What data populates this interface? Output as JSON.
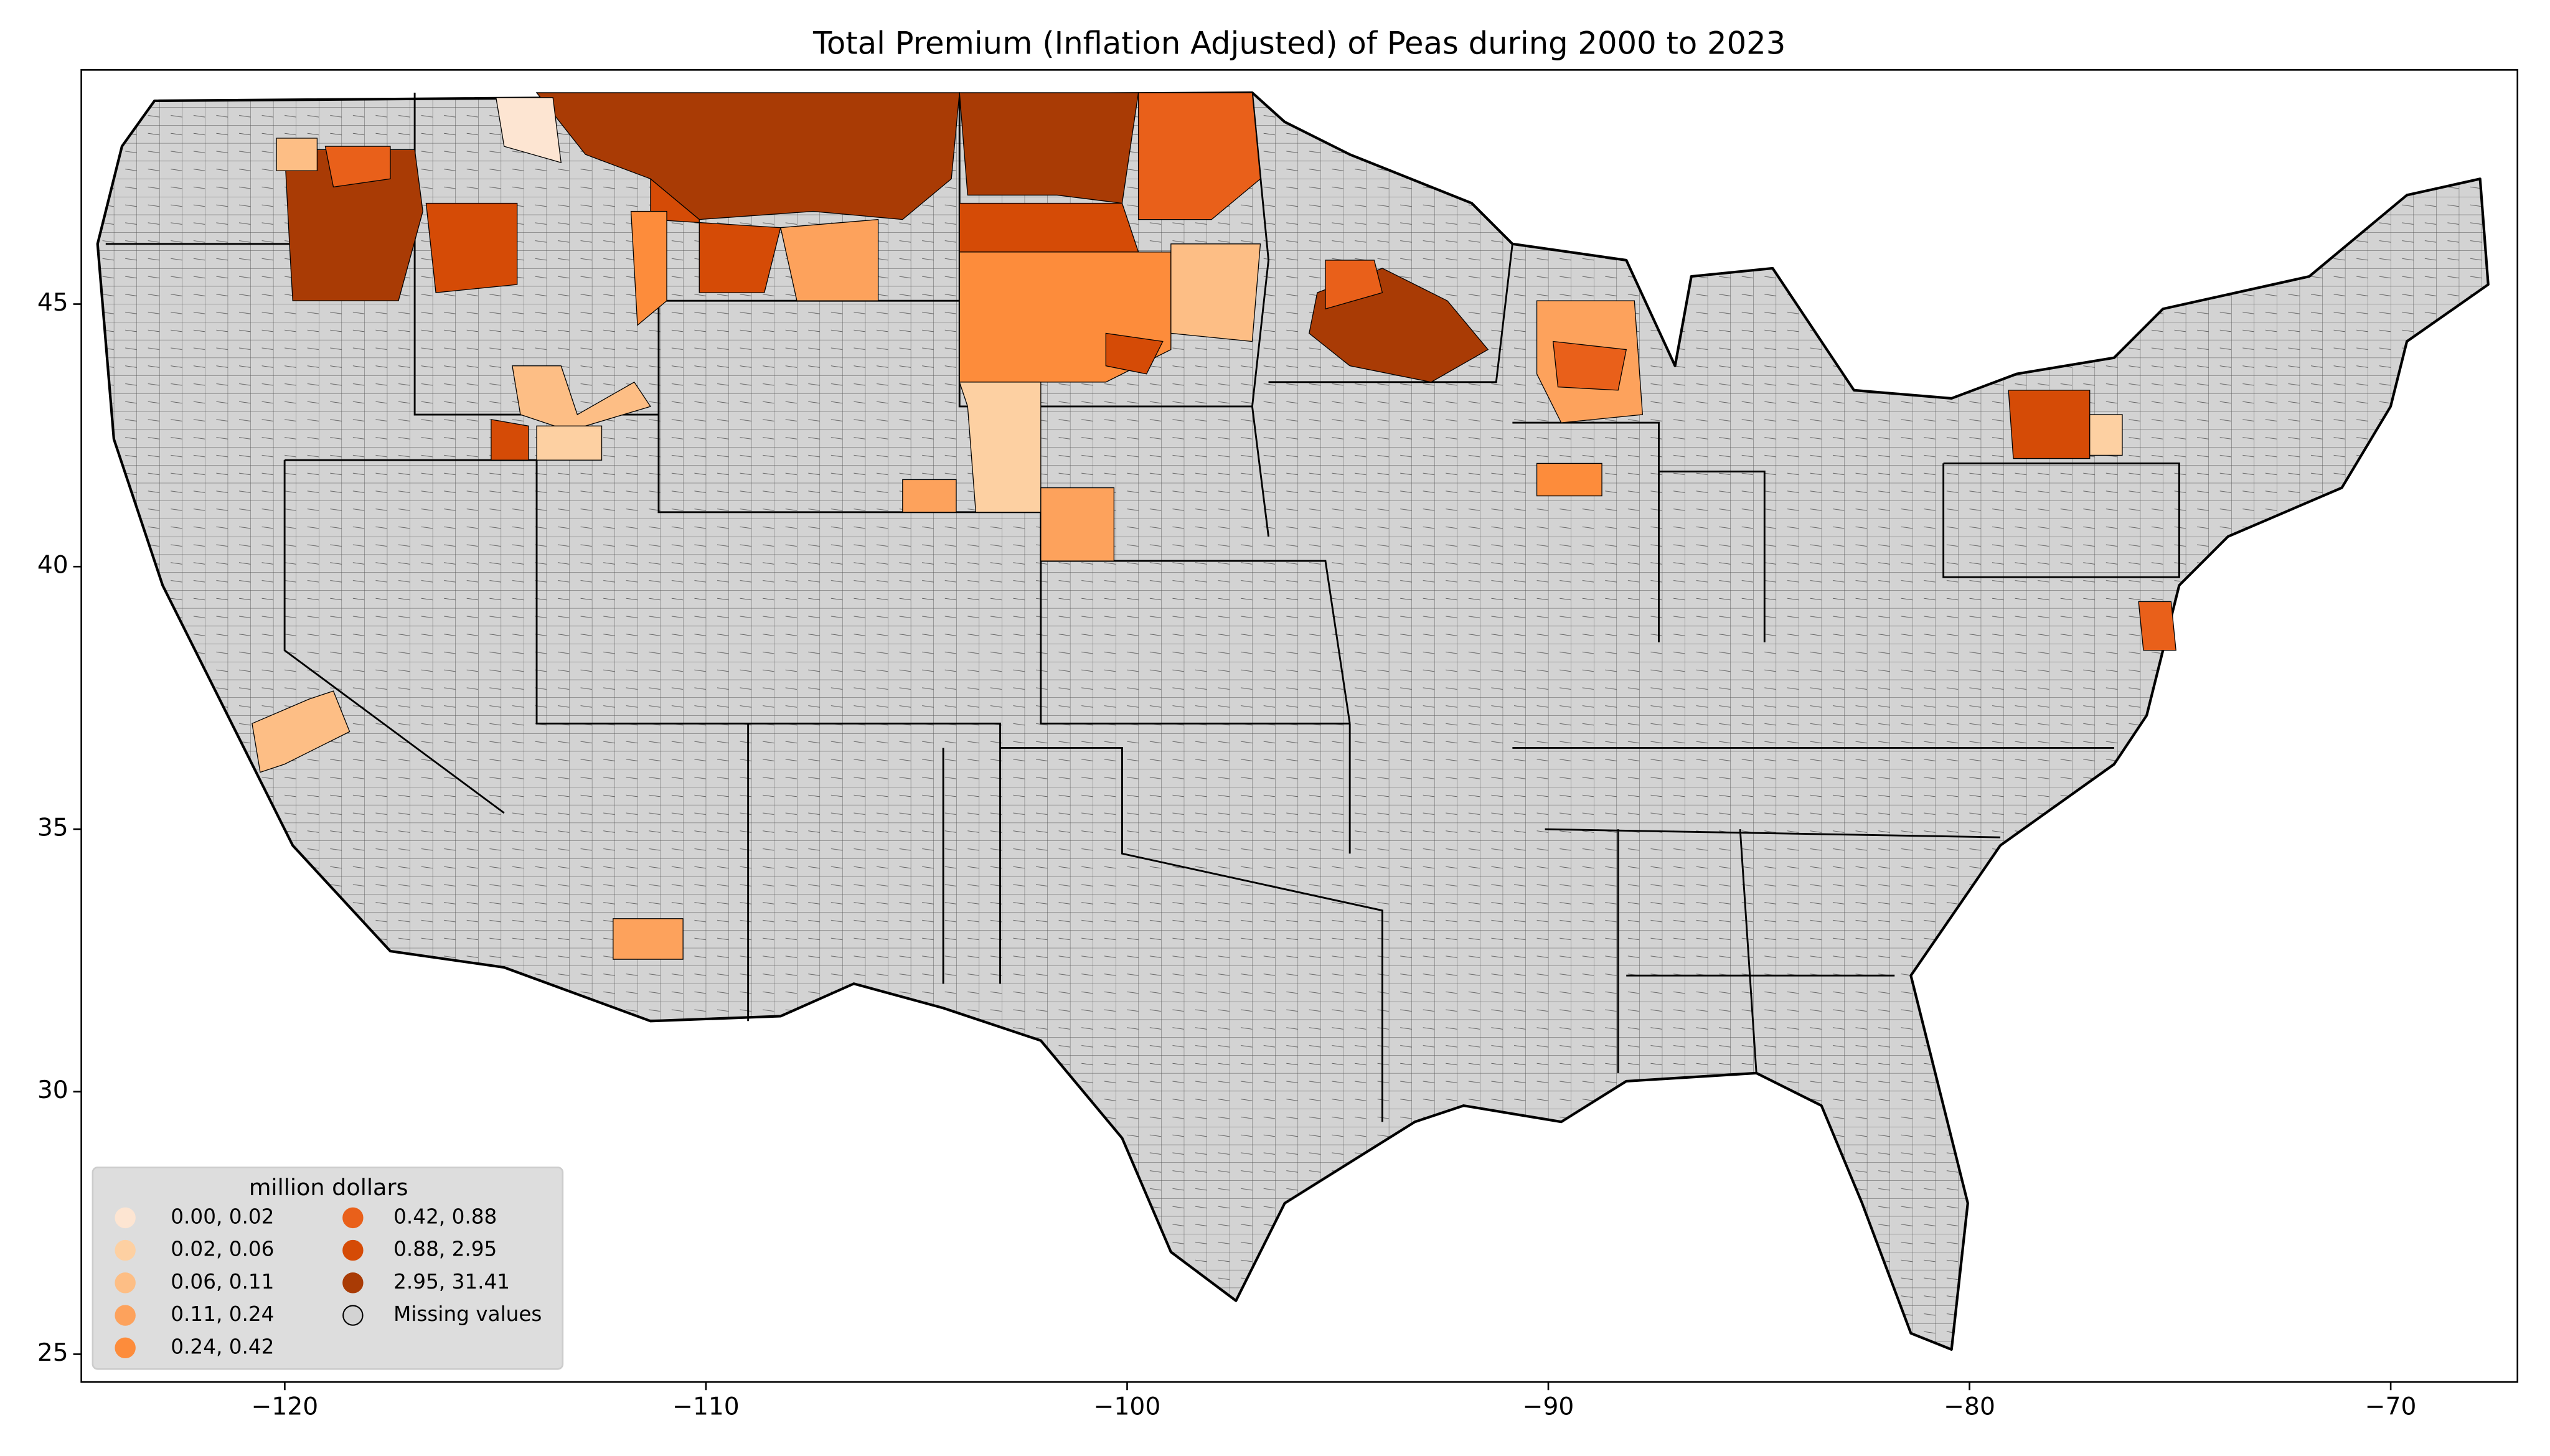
{
  "chart_data": {
    "type": "map",
    "title": "Total  Premium  (Inflation Adjusted) of Peas during 2000 to 2023",
    "xlim": [
      -124.83,
      -66.99
    ],
    "ylim": [
      24.47,
      49.46
    ],
    "xticks": [
      {
        "value": -120,
        "label": "−120"
      },
      {
        "value": -110,
        "label": "−110"
      },
      {
        "value": -100,
        "label": "−100"
      },
      {
        "value": -90,
        "label": "−90"
      },
      {
        "value": -80,
        "label": "−80"
      },
      {
        "value": -70,
        "label": "−70"
      }
    ],
    "yticks": [
      25,
      30,
      35,
      40,
      45
    ],
    "legend": {
      "title": "million dollars",
      "position": "lower left",
      "items": [
        {
          "label": "0.00,  0.02",
          "color": "#fde5d2"
        },
        {
          "label": "0.02,  0.06",
          "color": "#fdd0a2"
        },
        {
          "label": "0.06,  0.11",
          "color": "#fdbe85"
        },
        {
          "label": "0.11,  0.24",
          "color": "#fda25c"
        },
        {
          "label": "0.24,  0.42",
          "color": "#fd8c3b"
        },
        {
          "label": "0.42,  0.88",
          "color": "#e9601a"
        },
        {
          "label": "0.88,  2.95",
          "color": "#d54b06"
        },
        {
          "label": "2.95, 31.41",
          "color": "#a93b05"
        },
        {
          "label": "Missing values",
          "color": "#d3d3d3"
        }
      ]
    }
  }
}
